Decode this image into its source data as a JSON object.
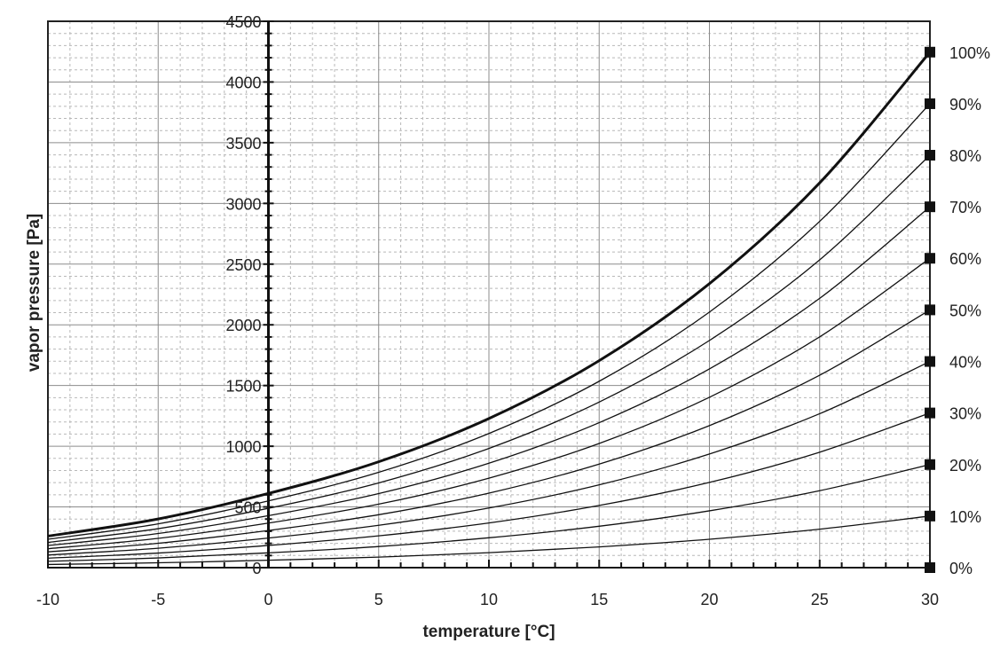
{
  "chart_data": {
    "type": "line",
    "title": "",
    "xlabel": "temperature [°C]",
    "ylabel": "vapor pressure [Pa]",
    "xlim": [
      -10,
      30
    ],
    "ylim": [
      0,
      4500
    ],
    "x_ticks": [
      "-10",
      "-5",
      "0",
      "5",
      "10",
      "15",
      "20",
      "25",
      "30"
    ],
    "y_ticks": [
      "0",
      "500",
      "1000",
      "1500",
      "2000",
      "2500",
      "3000",
      "3500",
      "4000",
      "4500"
    ],
    "grid": true,
    "x": [
      -10,
      -5,
      0,
      5,
      10,
      15,
      20,
      25,
      30
    ],
    "series": [
      {
        "name": "100%",
        "values": [
          260,
          401,
          611,
          872,
          1228,
          1705,
          2339,
          3169,
          4246
        ]
      },
      {
        "name": "90%",
        "values": [
          234,
          361,
          550,
          785,
          1105,
          1535,
          2105,
          2852,
          3821
        ]
      },
      {
        "name": "80%",
        "values": [
          208,
          321,
          489,
          698,
          982,
          1364,
          1871,
          2535,
          3397
        ]
      },
      {
        "name": "70%",
        "values": [
          182,
          281,
          428,
          610,
          860,
          1194,
          1637,
          2218,
          2972
        ]
      },
      {
        "name": "60%",
        "values": [
          156,
          241,
          367,
          523,
          737,
          1023,
          1403,
          1901,
          2548
        ]
      },
      {
        "name": "50%",
        "values": [
          130,
          201,
          306,
          436,
          614,
          853,
          1170,
          1585,
          2123
        ]
      },
      {
        "name": "40%",
        "values": [
          104,
          160,
          244,
          349,
          491,
          682,
          936,
          1268,
          1698
        ]
      },
      {
        "name": "30%",
        "values": [
          78,
          120,
          183,
          262,
          368,
          512,
          702,
          951,
          1274
        ]
      },
      {
        "name": "20%",
        "values": [
          52,
          80,
          122,
          174,
          246,
          341,
          468,
          634,
          849
        ]
      },
      {
        "name": "10%",
        "values": [
          26,
          40,
          61,
          87,
          123,
          171,
          234,
          317,
          425
        ]
      },
      {
        "name": "0%",
        "values": [
          0,
          0,
          0,
          0,
          0,
          0,
          0,
          0,
          0
        ]
      }
    ]
  }
}
